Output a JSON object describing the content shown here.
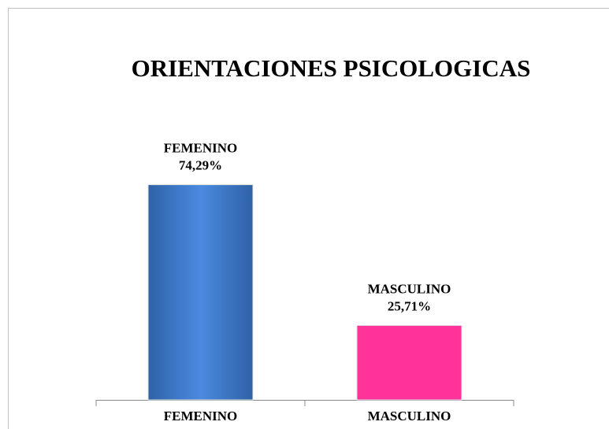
{
  "chart_data": {
    "type": "bar",
    "title": "ORIENTACIONES PSICOLOGICAS",
    "categories": [
      "FEMENINO",
      "MASCULINO"
    ],
    "values": [
      74.29,
      25.71
    ],
    "value_labels": [
      "74,29%",
      "25,71%"
    ],
    "colors": [
      "#3b7acb",
      "#ff3399"
    ]
  }
}
